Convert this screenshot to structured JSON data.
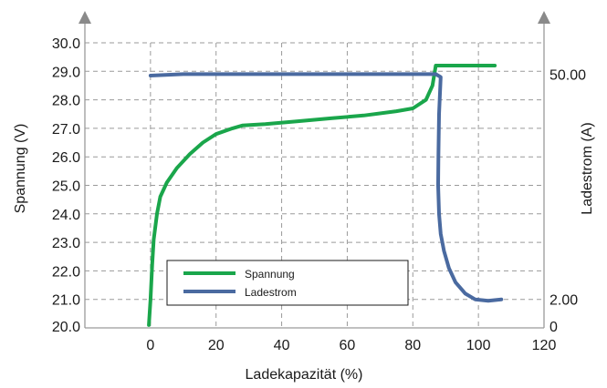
{
  "chart_data": {
    "type": "line",
    "xlabel": "Ladekapazität (%)",
    "ylabel_left": "Spannung (V)",
    "ylabel_right": "Ladestrom (A)",
    "xlim": [
      -20,
      120
    ],
    "ylim_left": [
      20.0,
      30.0
    ],
    "x_ticks": [
      "0",
      "20",
      "40",
      "60",
      "80",
      "100",
      "120"
    ],
    "x_tick_values": [
      0,
      20,
      40,
      60,
      80,
      100,
      120
    ],
    "y_left_ticks": [
      "20.0",
      "21.0",
      "22.0",
      "23.0",
      "24.0",
      "25.0",
      "26.0",
      "27.0",
      "28.0",
      "29.0",
      "30.0"
    ],
    "y_left_tick_values": [
      20,
      21,
      22,
      23,
      24,
      25,
      26,
      27,
      28,
      29,
      30
    ],
    "y_right_ticks": [
      {
        "label": "0",
        "voltage_equiv": 20.0
      },
      {
        "label": "2.00",
        "voltage_equiv": 21.0
      },
      {
        "label": "50.00",
        "voltage_equiv": 28.9
      }
    ],
    "grid": true,
    "legend_position": "lower-center",
    "series": [
      {
        "name": "Spannung",
        "color": "#1aa64b",
        "axis": "left",
        "points": [
          [
            -0.5,
            20.1
          ],
          [
            0,
            21.0
          ],
          [
            0.5,
            22.2
          ],
          [
            1,
            23.1
          ],
          [
            2,
            24.0
          ],
          [
            3,
            24.6
          ],
          [
            5,
            25.1
          ],
          [
            8,
            25.6
          ],
          [
            12,
            26.1
          ],
          [
            16,
            26.5
          ],
          [
            20,
            26.8
          ],
          [
            25,
            27.0
          ],
          [
            28,
            27.1
          ],
          [
            35,
            27.15
          ],
          [
            45,
            27.25
          ],
          [
            55,
            27.35
          ],
          [
            65,
            27.45
          ],
          [
            75,
            27.6
          ],
          [
            80,
            27.7
          ],
          [
            84,
            28.0
          ],
          [
            86,
            28.5
          ],
          [
            87,
            29.2
          ],
          [
            105,
            29.2
          ]
        ]
      },
      {
        "name": "Ladestrom",
        "color": "#4a6aa0",
        "axis": "right",
        "points": [
          [
            0,
            28.85
          ],
          [
            10,
            28.9
          ],
          [
            30,
            28.9
          ],
          [
            50,
            28.9
          ],
          [
            70,
            28.9
          ],
          [
            87,
            28.9
          ],
          [
            88.5,
            28.8
          ],
          [
            88,
            27.5
          ],
          [
            87.8,
            26.0
          ],
          [
            87.7,
            25.0
          ],
          [
            88,
            24.0
          ],
          [
            88.5,
            23.3
          ],
          [
            89.5,
            22.7
          ],
          [
            91,
            22.1
          ],
          [
            93,
            21.6
          ],
          [
            96,
            21.2
          ],
          [
            99,
            21.0
          ],
          [
            103,
            20.95
          ],
          [
            107,
            21.0
          ]
        ]
      }
    ]
  }
}
